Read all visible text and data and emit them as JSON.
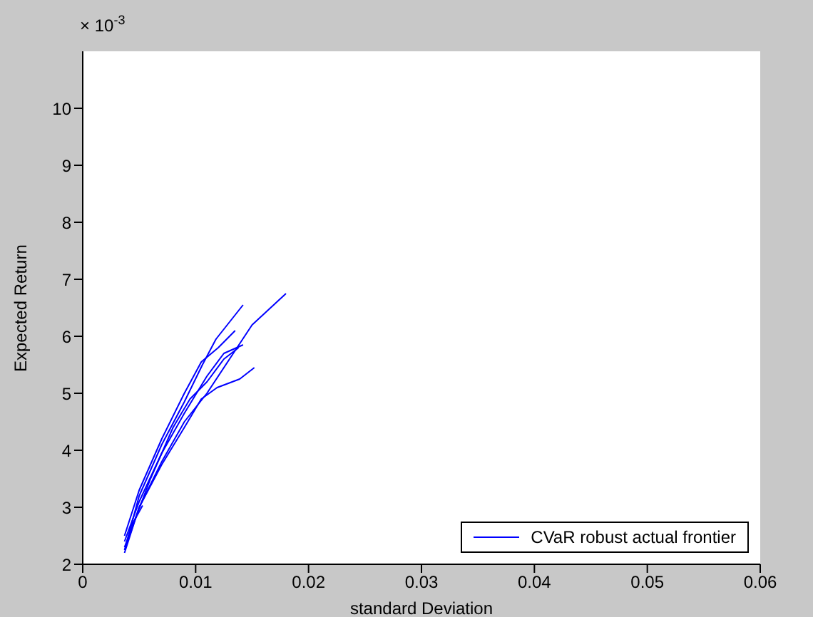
{
  "chart_data": {
    "type": "line",
    "xlabel": "standard Deviation",
    "ylabel": "Expected Return",
    "annotations": [
      "× 10$^{-3}$"
    ],
    "xlim": [
      0,
      0.06
    ],
    "xticks": [
      0,
      0.01,
      0.02,
      0.03,
      0.04,
      0.05,
      0.06
    ],
    "ylim": [
      2,
      11
    ],
    "yticks": [
      2,
      3,
      4,
      5,
      6,
      7,
      8,
      9,
      10
    ],
    "grid": false,
    "legend": "bottom right",
    "marker": "none",
    "line_style": "solid",
    "series": [
      {
        "name": "CVaR robust actual frontier",
        "color": "#0000ff",
        "x": [
          0.0037,
          0.005,
          0.007,
          0.009,
          0.0106,
          0.0118,
          0.013,
          0.0142
        ],
        "values": [
          2.25,
          3.2,
          4.1,
          4.85,
          5.5,
          5.95,
          6.25,
          6.55
        ]
      },
      {
        "color": "#0000ff",
        "x": [
          0.0037,
          0.005,
          0.007,
          0.009,
          0.011,
          0.013,
          0.015,
          0.018
        ],
        "values": [
          2.2,
          3.0,
          3.8,
          4.5,
          5.0,
          5.6,
          6.2,
          6.75
        ]
      },
      {
        "color": "#0000ff",
        "x": [
          0.0038,
          0.005,
          0.007,
          0.009,
          0.0105,
          0.0119,
          0.0139,
          0.0152
        ],
        "values": [
          2.3,
          3.0,
          3.75,
          4.4,
          4.9,
          5.1,
          5.25,
          5.45
        ]
      },
      {
        "color": "#0000ff",
        "x": [
          0.0037,
          0.005,
          0.007,
          0.009,
          0.011,
          0.0125,
          0.0142
        ],
        "values": [
          2.4,
          3.1,
          3.95,
          4.65,
          5.3,
          5.7,
          5.85
        ]
      },
      {
        "color": "#0000ff",
        "x": [
          0.0037,
          0.005,
          0.007,
          0.009,
          0.0105,
          0.012,
          0.0135
        ],
        "values": [
          2.5,
          3.3,
          4.2,
          5.0,
          5.55,
          5.8,
          6.1
        ]
      },
      {
        "color": "#0000ff",
        "x": [
          0.0041,
          0.0053
        ],
        "values": [
          2.6,
          3.03
        ]
      },
      {
        "color": "#0000ff",
        "x": [
          0.0037,
          0.006,
          0.008,
          0.0095,
          0.011,
          0.0125,
          0.0138
        ],
        "values": [
          2.3,
          3.5,
          4.4,
          4.9,
          5.2,
          5.6,
          5.8
        ]
      }
    ]
  }
}
